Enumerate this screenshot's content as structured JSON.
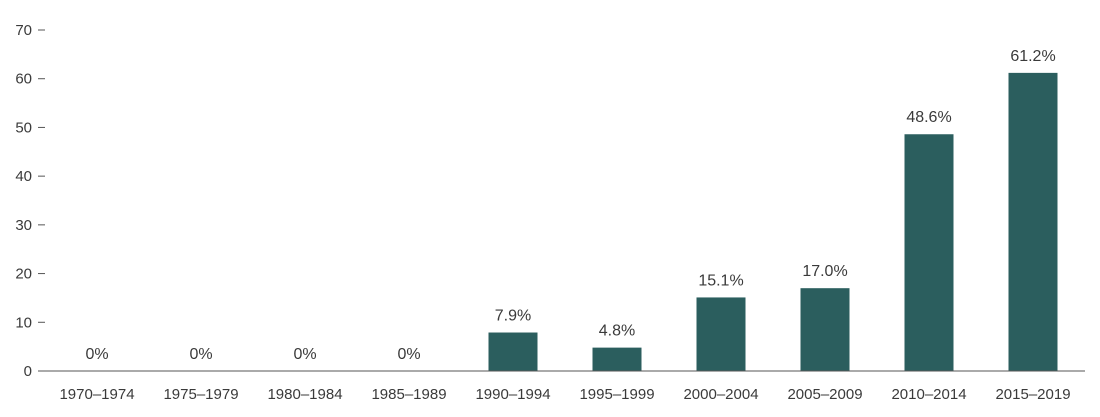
{
  "chart_data": {
    "type": "bar",
    "categories": [
      "1970–1974",
      "1975–1979",
      "1980–1984",
      "1985–1989",
      "1990–1994",
      "1995–1999",
      "2000–2004",
      "2005–2009",
      "2010–2014",
      "2015–2019"
    ],
    "values": [
      0,
      0,
      0,
      0,
      7.9,
      4.8,
      15.1,
      17.0,
      48.6,
      61.2
    ],
    "data_labels": [
      "0%",
      "0%",
      "0%",
      "0%",
      "7.9%",
      "4.8%",
      "15.1%",
      "17.0%",
      "48.6%",
      "61.2%"
    ],
    "ylim": [
      0,
      70
    ],
    "yticks": [
      0,
      10,
      20,
      30,
      40,
      50,
      60,
      70
    ],
    "ytick_labels": [
      "0",
      "10",
      "20",
      "30",
      "40",
      "50",
      "60",
      "70"
    ],
    "grid": false,
    "legend": "none",
    "bar_color": "#2b5e5e",
    "axis_color": "#555555",
    "text_color": "#3a3a3a"
  }
}
